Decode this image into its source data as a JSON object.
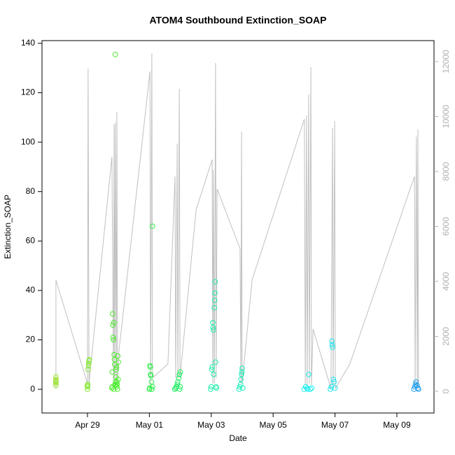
{
  "chart_data": {
    "type": "scatter",
    "title": "ATOM4 Southbound Extinction_SOAP",
    "xlabel": "Date",
    "ylabel": "Extinction_SOAP",
    "xlim": [
      27.53,
      40.2
    ],
    "xticks": [
      {
        "value": 29,
        "label": "Apr 29"
      },
      {
        "value": 31,
        "label": "May 01"
      },
      {
        "value": 33,
        "label": "May 03"
      },
      {
        "value": 35,
        "label": "May 05"
      },
      {
        "value": 37,
        "label": "May 07"
      },
      {
        "value": 39,
        "label": "May 09"
      }
    ],
    "ylim": [
      -9.6,
      141.1
    ],
    "yticks": [
      0,
      20,
      40,
      60,
      80,
      100,
      120,
      140
    ],
    "y2lim": [
      -790,
      12764
    ],
    "y2ticks": [
      0,
      2000,
      4000,
      6000,
      8000,
      10000,
      12000
    ],
    "series": [
      {
        "color": "#9be22e",
        "x": [
          27.98,
          27.98,
          27.98,
          27.98,
          27.98,
          27.98
        ],
        "values": [
          1.5,
          2.5,
          3,
          3.5,
          4,
          5
        ]
      },
      {
        "color": "#7ee82a",
        "x": [
          29.0,
          29.0,
          29.01,
          29.02,
          29.03,
          29.04,
          29.05,
          29.06,
          29.0
        ],
        "values": [
          0,
          1,
          2,
          8,
          9.5,
          10.5,
          11.5,
          12,
          1.5
        ]
      },
      {
        "color": "#4ced2e",
        "x": [
          29.79,
          29.8,
          29.81,
          29.82,
          29.83,
          29.84,
          29.85,
          29.86,
          29.87,
          29.88,
          29.89,
          29.9,
          29.91,
          29.92,
          29.93,
          29.94,
          29.95,
          29.96,
          29.97,
          29.98,
          29.99,
          30.0,
          29.85,
          29.9,
          29.95,
          29.8
        ],
        "values": [
          0.5,
          1,
          30.5,
          26,
          21,
          20,
          27,
          14,
          12,
          10,
          2,
          135.5,
          3,
          5,
          8,
          9,
          1,
          2,
          0,
          13.5,
          4,
          11,
          0,
          1.5,
          3,
          7
        ]
      },
      {
        "color": "#28ee46",
        "x": [
          31.0,
          31.01,
          31.02,
          31.03,
          31.04,
          31.05,
          31.07,
          31.1,
          31.08,
          31.1
        ],
        "values": [
          0,
          0.5,
          9.5,
          9,
          6,
          5.5,
          3,
          66,
          0,
          1
        ]
      },
      {
        "color": "#1aee5e",
        "x": [
          31.82,
          31.85,
          31.87,
          31.9,
          31.92,
          31.95,
          31.97,
          32.0,
          31.98,
          32.0
        ],
        "values": [
          0,
          0.5,
          1,
          2,
          3,
          4.5,
          6,
          7,
          0,
          1
        ]
      },
      {
        "color": "#1aeeaa",
        "x": [
          32.98,
          33.0,
          33.02,
          33.03,
          33.05,
          33.06,
          33.07,
          33.08,
          33.1,
          33.11,
          33.12,
          33.13,
          33.14,
          33.15,
          33.17
        ],
        "values": [
          0,
          1,
          8,
          9,
          27,
          25,
          24,
          6,
          33,
          36,
          39,
          43.5,
          11,
          1,
          0.5
        ]
      },
      {
        "color": "#1aeebb",
        "x": [
          33.9,
          33.92,
          33.95,
          33.96,
          33.98,
          33.99,
          34.0,
          34.02
        ],
        "values": [
          0,
          1,
          2,
          4,
          6,
          7,
          8.5,
          0.5
        ]
      },
      {
        "color": "#1aeeee",
        "x": [
          36.0,
          36.05,
          36.1,
          36.15,
          36.2,
          36.25,
          36.12
        ],
        "values": [
          0,
          1,
          0.5,
          6,
          0,
          0.5,
          0
        ]
      },
      {
        "color": "#1ae6ee",
        "x": [
          36.85,
          36.88,
          36.9,
          36.91,
          36.92,
          36.95,
          36.97,
          37.0
        ],
        "values": [
          0,
          1,
          19.5,
          18,
          17,
          4,
          3,
          0.5
        ]
      },
      {
        "color": "#1a9cee",
        "x": [
          39.55,
          39.58,
          39.6,
          39.62,
          39.65,
          39.68,
          39.7
        ],
        "values": [
          0,
          1,
          2,
          3,
          1.5,
          0.5,
          0
        ]
      },
      {
        "color": "#c0c0c0",
        "axis": "y2",
        "style": "line",
        "x": [
          27.98,
          27.98,
          29.0,
          29.02,
          29.05,
          29.11,
          29.79,
          29.84,
          29.86,
          29.88,
          29.9,
          29.93,
          29.95,
          29.97,
          30.02,
          31.02,
          31.04,
          31.08,
          31.1,
          31.6,
          31.83,
          31.85,
          31.9,
          31.92,
          31.97,
          31.99,
          32.51,
          33.03,
          33.05,
          33.07,
          33.1,
          33.14,
          33.16,
          33.19,
          33.93,
          33.96,
          33.98,
          34.0,
          34.32,
          36.01,
          36.04,
          36.08,
          36.1,
          36.15,
          36.17,
          36.22,
          36.24,
          36.29,
          36.87,
          36.92,
          36.94,
          36.99,
          37.01,
          37.48,
          39.57,
          39.59,
          39.63,
          39.66,
          39.68,
          39.7
        ],
        "values": [
          102,
          4051,
          280,
          11745,
          280,
          994,
          8535,
          229,
          9707,
          229,
          9783,
          229,
          10166,
          357,
          1503,
          11643,
          229,
          12306,
          484,
          994,
          7822,
          484,
          9019,
          484,
          11006,
          484,
          6599,
          8433,
          280,
          8051,
          280,
          11949,
          484,
          7363,
          5197,
          280,
          9452,
          280,
          4051,
          9911,
          229,
          10038,
          229,
          10803,
          280,
          11796,
          229,
          2268,
          102,
          9580,
          102,
          9834,
          102,
          994,
          7822,
          102,
          9274,
          102,
          9529,
          102
        ]
      }
    ]
  }
}
